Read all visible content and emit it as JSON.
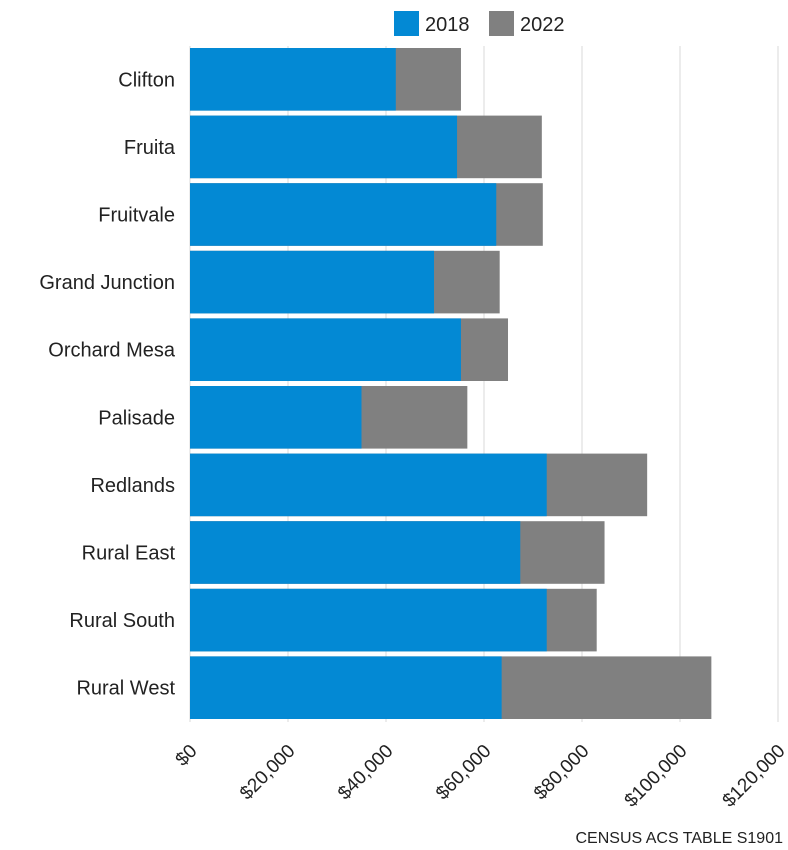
{
  "chart_data": {
    "type": "bar",
    "orientation": "horizontal",
    "stacked": false,
    "categories": [
      "Clifton",
      "Fruita",
      "Fruitvale",
      "Grand Junction",
      "Orchard Mesa",
      "Palisade",
      "Redlands",
      "Rural East",
      "Rural South",
      "Rural West"
    ],
    "series": [
      {
        "name": "2018",
        "color": "#0389d4",
        "values": [
          42000,
          54500,
          62500,
          49800,
          55300,
          35000,
          72800,
          67400,
          72800,
          63600
        ]
      },
      {
        "name": "2022",
        "color": "#808080",
        "values": [
          55300,
          71800,
          72000,
          63200,
          64900,
          56600,
          93300,
          84600,
          83000,
          106400
        ]
      }
    ],
    "xlim": [
      0,
      120000
    ],
    "x_ticks": [
      "$0",
      "$20,000",
      "$40,000",
      "$60,000",
      "$80,000",
      "$100,000",
      "$120,000"
    ],
    "grid": "vertical",
    "legend": "top",
    "source": "CENSUS ACS TABLE S1901"
  }
}
